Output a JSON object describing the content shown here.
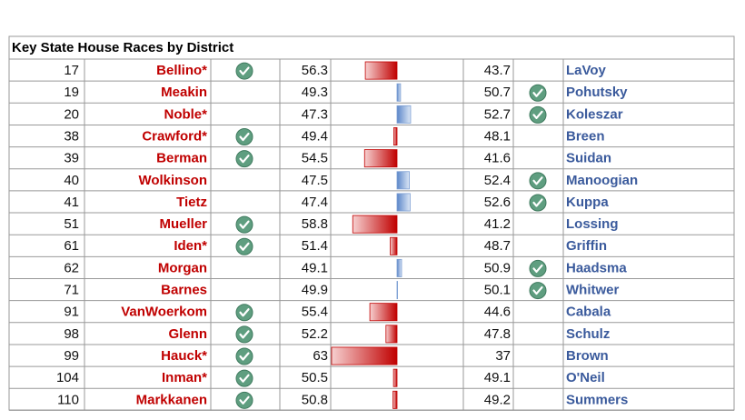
{
  "title": "Key State House Races by District",
  "rows": [
    {
      "district": 17,
      "rep": "Bellino*",
      "rep_pct": 56.3,
      "dem_pct": 43.7,
      "dem": "LaVoy"
    },
    {
      "district": 19,
      "rep": "Meakin",
      "rep_pct": 49.3,
      "dem_pct": 50.7,
      "dem": "Pohutsky"
    },
    {
      "district": 20,
      "rep": "Noble*",
      "rep_pct": 47.3,
      "dem_pct": 52.7,
      "dem": "Koleszar"
    },
    {
      "district": 38,
      "rep": "Crawford*",
      "rep_pct": 49.4,
      "dem_pct": 48.1,
      "dem": "Breen"
    },
    {
      "district": 39,
      "rep": "Berman",
      "rep_pct": 54.5,
      "dem_pct": 41.6,
      "dem": "Suidan"
    },
    {
      "district": 40,
      "rep": "Wolkinson",
      "rep_pct": 47.5,
      "dem_pct": 52.4,
      "dem": "Manoogian"
    },
    {
      "district": 41,
      "rep": "Tietz",
      "rep_pct": 47.4,
      "dem_pct": 52.6,
      "dem": "Kuppa"
    },
    {
      "district": 51,
      "rep": "Mueller",
      "rep_pct": 58.8,
      "dem_pct": 41.2,
      "dem": "Lossing"
    },
    {
      "district": 61,
      "rep": "Iden*",
      "rep_pct": 51.4,
      "dem_pct": 48.7,
      "dem": "Griffin"
    },
    {
      "district": 62,
      "rep": "Morgan",
      "rep_pct": 49.1,
      "dem_pct": 50.9,
      "dem": "Haadsma"
    },
    {
      "district": 71,
      "rep": "Barnes",
      "rep_pct": 49.9,
      "dem_pct": 50.1,
      "dem": "Whitwer"
    },
    {
      "district": 91,
      "rep": "VanWoerkom",
      "rep_pct": 55.4,
      "dem_pct": 44.6,
      "dem": "Cabala"
    },
    {
      "district": 98,
      "rep": "Glenn",
      "rep_pct": 52.2,
      "dem_pct": 47.8,
      "dem": "Schulz"
    },
    {
      "district": 99,
      "rep": "Hauck*",
      "rep_pct": 63,
      "dem_pct": 37,
      "dem": "Brown"
    },
    {
      "district": 104,
      "rep": "Inman*",
      "rep_pct": 50.5,
      "dem_pct": 49.1,
      "dem": "O'Neil"
    },
    {
      "district": 110,
      "rep": "Markkanen",
      "rep_pct": 50.8,
      "dem_pct": 49.2,
      "dem": "Summers"
    }
  ]
}
